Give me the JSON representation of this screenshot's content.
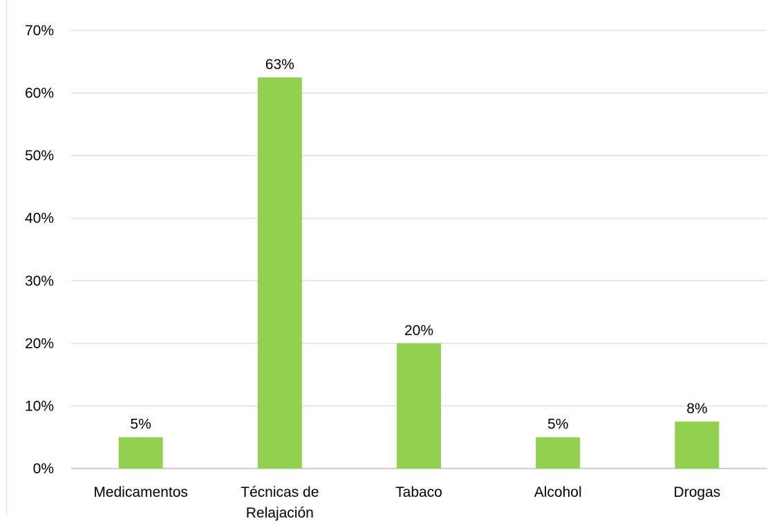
{
  "chart_data": {
    "type": "bar",
    "title": "",
    "xlabel": "",
    "ylabel": "",
    "categories": [
      "Medicamentos",
      "Técnicas de Relajación",
      "Tabaco",
      "Alcohol",
      "Drogas"
    ],
    "category_lines": [
      [
        "Medicamentos"
      ],
      [
        "Técnicas de",
        "Relajación"
      ],
      [
        "Tabaco"
      ],
      [
        "Alcohol"
      ],
      [
        "Drogas"
      ]
    ],
    "values": [
      0.05,
      0.625,
      0.2,
      0.05,
      0.075
    ],
    "data_labels": [
      "5%",
      "63%",
      "20%",
      "5%",
      "8%"
    ],
    "ylim": [
      0,
      0.7
    ],
    "y_ticks": [
      0,
      0.1,
      0.2,
      0.3,
      0.4,
      0.5,
      0.6,
      0.7
    ],
    "y_tick_labels": [
      "0%",
      "10%",
      "20%",
      "30%",
      "40%",
      "50%",
      "60%",
      "70%"
    ],
    "grid": true,
    "legend": "none",
    "colors": {
      "bar": "#92d050",
      "grid": "#d9d9d9",
      "axis": "#bfbfbf",
      "text": "#000000"
    }
  }
}
